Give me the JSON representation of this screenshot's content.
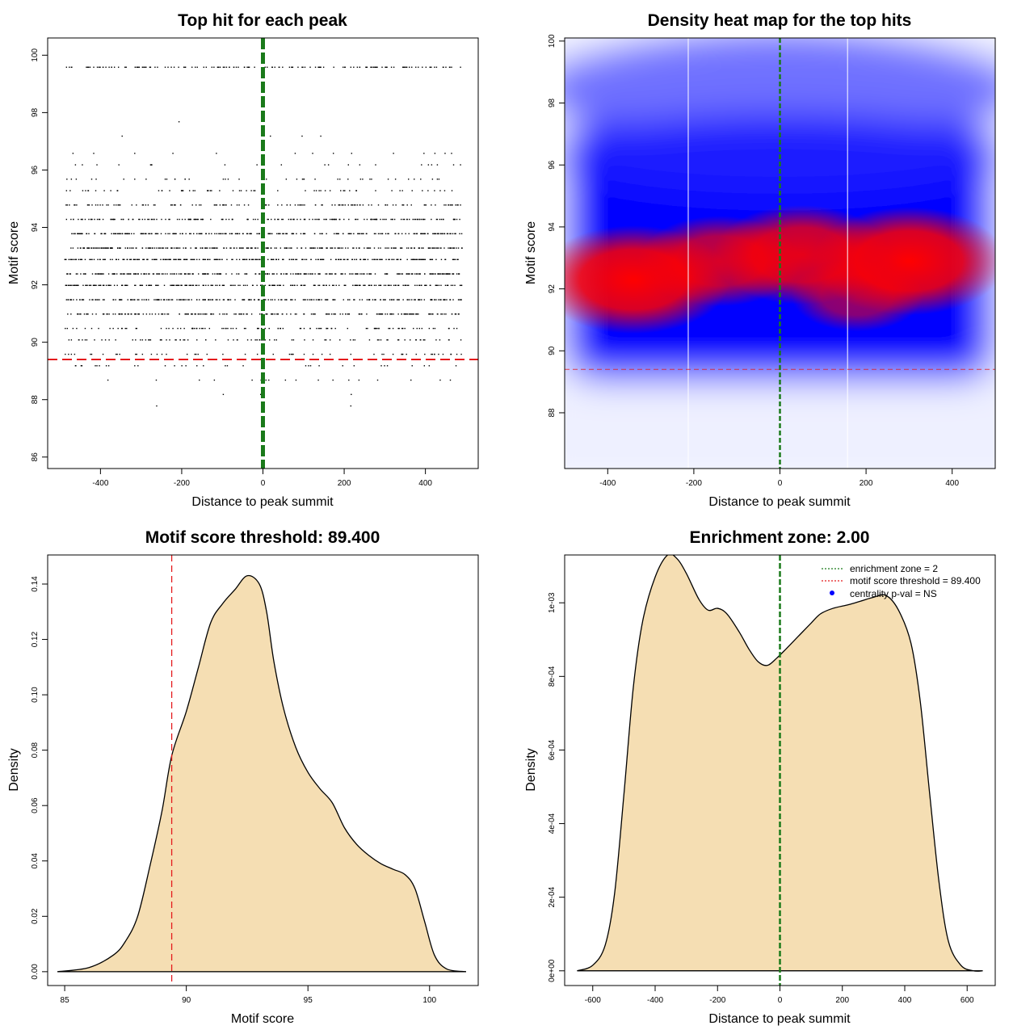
{
  "colors": {
    "threshold_line": "#e41a1c",
    "zone_line": "#1a7a1a",
    "density_fill": "#f5deb3",
    "heat_low": "#ffffff",
    "heat_mid": "#0000ff",
    "heat_high": "#ff0000",
    "legend_dot": "#0000ff"
  },
  "chart_data": [
    {
      "id": "scatter",
      "type": "scatter",
      "title": "Top hit for each peak",
      "xlabel": "Distance to peak summit",
      "ylabel": "Motif score",
      "xlim": [
        -530,
        530
      ],
      "ylim": [
        85.6,
        100.6
      ],
      "xticks": [
        -400,
        -200,
        0,
        200,
        400
      ],
      "yticks": [
        86,
        88,
        90,
        92,
        94,
        96,
        98,
        100
      ],
      "threshold_y": 89.4,
      "zone_x": 0,
      "point_count": 2600,
      "score_levels": [
        99.6,
        99.2,
        98.7,
        98.1,
        97.7,
        97.2,
        96.6,
        96.2,
        95.7,
        95.3,
        94.8,
        94.3,
        93.8,
        93.3,
        92.9,
        92.4,
        92.0,
        91.5,
        91.0,
        90.5,
        90.1,
        89.6,
        89.2,
        88.7,
        88.2,
        87.8,
        87.3,
        86.9,
        86.5,
        86.2
      ]
    },
    {
      "id": "heatmap",
      "type": "heatmap",
      "title": "Density heat map for the top hits",
      "xlabel": "Distance to peak summit",
      "ylabel": "Motif score",
      "xlim": [
        -500,
        500
      ],
      "ylim": [
        86.2,
        100.1
      ],
      "xticks": [
        -400,
        -200,
        0,
        200,
        400
      ],
      "yticks": [
        88,
        90,
        92,
        94,
        96,
        98,
        100
      ],
      "threshold_y": 89.4,
      "zone_x": 0,
      "vlines_x": [
        -213,
        157
      ],
      "hotspots": [
        {
          "x": -340,
          "y": 92.3,
          "weight": 1.0
        },
        {
          "x": -140,
          "y": 92.9,
          "weight": 0.8
        },
        {
          "x": 50,
          "y": 93.1,
          "weight": 0.9
        },
        {
          "x": 300,
          "y": 92.9,
          "weight": 1.0
        },
        {
          "x": 180,
          "y": 91.8,
          "weight": 0.6
        }
      ]
    },
    {
      "id": "score_density",
      "type": "area",
      "title": "Motif score threshold: 89.400",
      "xlabel": "Motif score",
      "ylabel": "Density",
      "xlim": [
        84.3,
        102.0
      ],
      "ylim": [
        -0.005,
        0.1505
      ],
      "xticks": [
        85,
        90,
        95,
        100
      ],
      "yticks": [
        0.0,
        0.02,
        0.04,
        0.06,
        0.08,
        0.1,
        0.12,
        0.14
      ],
      "ytick_labels": [
        "0.00",
        "0.02",
        "0.04",
        "0.06",
        "0.08",
        "0.10",
        "0.12",
        "0.14"
      ],
      "threshold_x": 89.4,
      "x": [
        84.7,
        86.0,
        87.0,
        87.5,
        88.0,
        88.5,
        89.0,
        89.4,
        90.0,
        90.5,
        91.0,
        91.5,
        92.0,
        92.5,
        93.0,
        93.3,
        93.6,
        94.0,
        94.5,
        95.0,
        95.5,
        96.0,
        96.5,
        97.0,
        97.5,
        98.0,
        98.5,
        99.0,
        99.4,
        99.8,
        100.2,
        100.7,
        101.5
      ],
      "y": [
        0.0,
        0.0015,
        0.006,
        0.011,
        0.02,
        0.038,
        0.058,
        0.078,
        0.094,
        0.11,
        0.126,
        0.133,
        0.138,
        0.143,
        0.14,
        0.13,
        0.112,
        0.095,
        0.081,
        0.072,
        0.066,
        0.061,
        0.052,
        0.046,
        0.042,
        0.039,
        0.037,
        0.035,
        0.03,
        0.018,
        0.006,
        0.001,
        0.0
      ]
    },
    {
      "id": "distance_density",
      "type": "area",
      "title": "Enrichment zone: 2.00",
      "xlabel": "Distance to peak summit",
      "ylabel": "Density",
      "xlim": [
        -690,
        690
      ],
      "ylim": [
        -4e-05,
        0.00113
      ],
      "xticks": [
        -600,
        -400,
        -200,
        0,
        200,
        400,
        600
      ],
      "yticks": [
        0,
        0.0002,
        0.0004,
        0.0006,
        0.0008,
        0.001
      ],
      "ytick_labels": [
        "0e+00",
        "2e-04",
        "4e-04",
        "6e-04",
        "8e-04",
        "1e-03"
      ],
      "zone_x": 0,
      "x": [
        -650,
        -600,
        -560,
        -530,
        -500,
        -470,
        -440,
        -400,
        -360,
        -330,
        -300,
        -260,
        -230,
        -200,
        -170,
        -130,
        -100,
        -70,
        -40,
        -10,
        20,
        60,
        100,
        130,
        170,
        220,
        260,
        300,
        340,
        380,
        420,
        450,
        480,
        510,
        540,
        580,
        620,
        650
      ],
      "y": [
        0.0,
        1.5e-05,
        7e-05,
        0.00021,
        0.00048,
        0.00077,
        0.00095,
        0.00107,
        0.00113,
        0.00112,
        0.00108,
        0.00101,
        0.00098,
        0.000985,
        0.00097,
        0.00092,
        0.000875,
        0.00084,
        0.00083,
        0.00085,
        0.000875,
        0.00091,
        0.000945,
        0.00097,
        0.000985,
        0.000995,
        0.001005,
        0.001015,
        0.00102,
        0.00098,
        0.00089,
        0.00073,
        0.00048,
        0.00024,
        8e-05,
        1.5e-05,
        0.0,
        0.0
      ],
      "legend": [
        {
          "label": "enrichment zone = 2",
          "style": "dotted",
          "color": "#1a7a1a"
        },
        {
          "label": "motif score threshold = 89.400",
          "style": "dotted",
          "color": "#e41a1c"
        },
        {
          "label": "centrality p-val = NS",
          "style": "dot",
          "color": "#0000ff"
        }
      ]
    }
  ]
}
